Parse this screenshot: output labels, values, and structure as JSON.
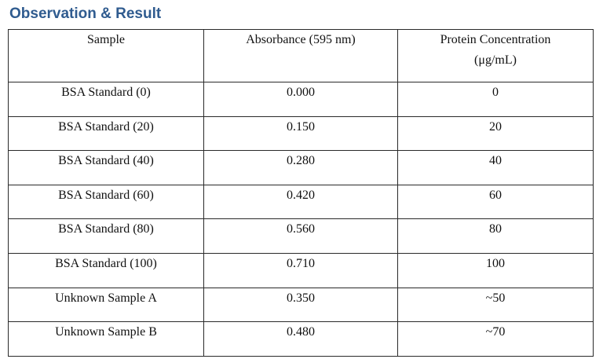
{
  "heading": "Observation & Result",
  "table": {
    "headers": {
      "sample": "Sample",
      "absorbance": "Absorbance (595 nm)",
      "concentration_line1": "Protein Concentration",
      "concentration_line2": "(μg/mL)"
    },
    "rows": [
      {
        "sample": "BSA Standard (0)",
        "absorbance": "0.000",
        "concentration": "0"
      },
      {
        "sample": "BSA Standard (20)",
        "absorbance": "0.150",
        "concentration": "20"
      },
      {
        "sample": "BSA Standard (40)",
        "absorbance": "0.280",
        "concentration": "40"
      },
      {
        "sample": "BSA Standard (60)",
        "absorbance": "0.420",
        "concentration": "60"
      },
      {
        "sample": "BSA Standard (80)",
        "absorbance": "0.560",
        "concentration": "80"
      },
      {
        "sample": "BSA Standard (100)",
        "absorbance": "0.710",
        "concentration": "100"
      },
      {
        "sample": "Unknown Sample A",
        "absorbance": "0.350",
        "concentration": "~50"
      },
      {
        "sample": "Unknown Sample B",
        "absorbance": "0.480",
        "concentration": "~70"
      }
    ]
  },
  "colors": {
    "heading": "#2f5b8f",
    "border": "#2a2a2a",
    "text": "#111111"
  }
}
